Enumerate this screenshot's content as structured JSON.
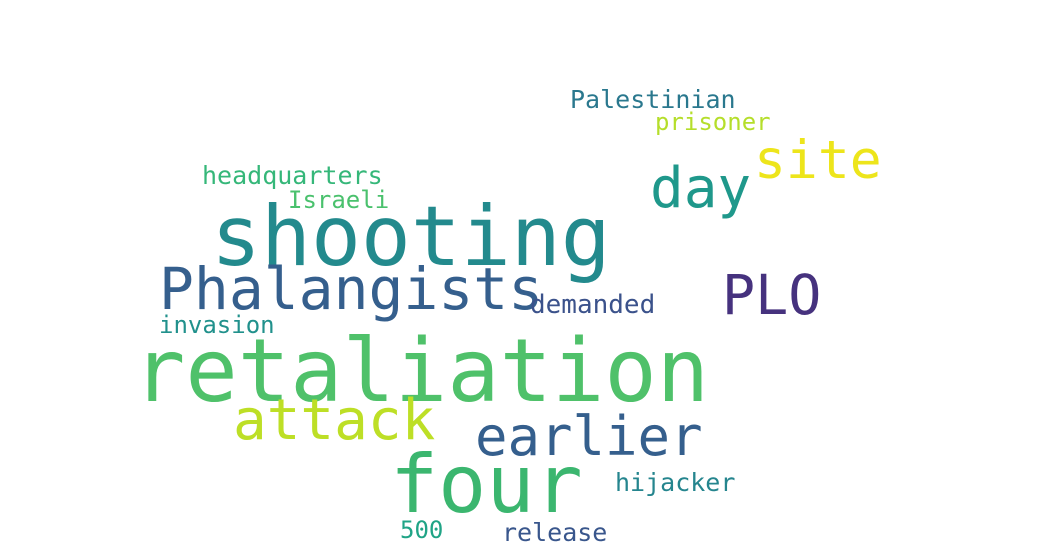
{
  "words": {
    "retaliation": {
      "text": "retaliation",
      "color": "#4fc16a"
    },
    "shooting": {
      "text": "shooting",
      "color": "#238a8d"
    },
    "four": {
      "text": "four",
      "color": "#3bb66f"
    },
    "phalangists": {
      "text": "Phalangists",
      "color": "#355f8d"
    },
    "earlier": {
      "text": "earlier",
      "color": "#355f8d"
    },
    "attack": {
      "text": "attack",
      "color": "#bddf26"
    },
    "plo": {
      "text": "PLO",
      "color": "#46327e"
    },
    "site": {
      "text": "site",
      "color": "#ede51b"
    },
    "day": {
      "text": "day",
      "color": "#1f988b"
    },
    "headquarters": {
      "text": "headquarters",
      "color": "#35b779"
    },
    "israeli": {
      "text": "Israeli",
      "color": "#4ac16d"
    },
    "demanded": {
      "text": "demanded",
      "color": "#3b528b"
    },
    "invasion": {
      "text": "invasion",
      "color": "#21918c"
    },
    "palestinian": {
      "text": "Palestinian",
      "color": "#2a788e"
    },
    "prisoner": {
      "text": "prisoner",
      "color": "#b5de2b"
    },
    "hijacker": {
      "text": "hijacker",
      "color": "#25858e"
    },
    "500": {
      "text": "500",
      "color": "#20a486"
    },
    "release": {
      "text": "release",
      "color": "#39568c"
    }
  }
}
